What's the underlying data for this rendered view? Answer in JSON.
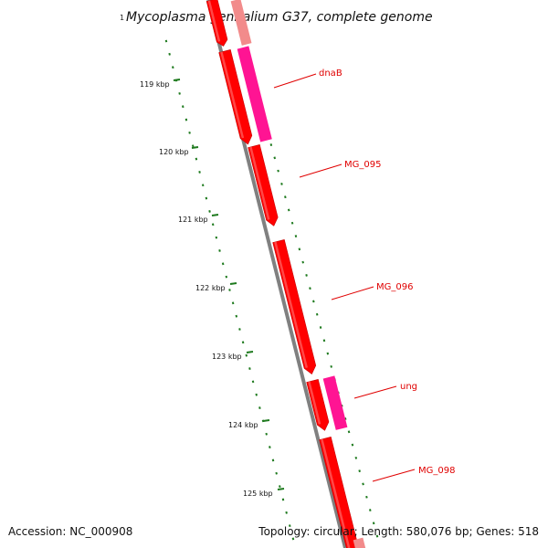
{
  "title": "Mycoplasma genitalium G37, complete genome",
  "start_marker": "1",
  "ticks": [
    {
      "label": "119 kbp"
    },
    {
      "label": "120 kbp"
    },
    {
      "label": "121 kbp"
    },
    {
      "label": "122 kbp"
    },
    {
      "label": "123 kbp"
    },
    {
      "label": "124 kbp"
    },
    {
      "label": "125 kbp"
    }
  ],
  "genes": [
    {
      "name": "dnaB"
    },
    {
      "name": "MG_095"
    },
    {
      "name": "MG_096"
    },
    {
      "name": "ung"
    },
    {
      "name": "MG_098"
    }
  ],
  "footer": {
    "accession": "Accession: NC_000908",
    "summary": "Topology: circular; Length: 580,076 bp; Genes: 518"
  },
  "colors": {
    "cds": "#ff0000",
    "cds_dark": "#c80000",
    "rna": "#ff1493",
    "faded": "#f28b8b",
    "backbone": "#808080",
    "tick": "#1e7a1e",
    "label": "#e00000"
  }
}
